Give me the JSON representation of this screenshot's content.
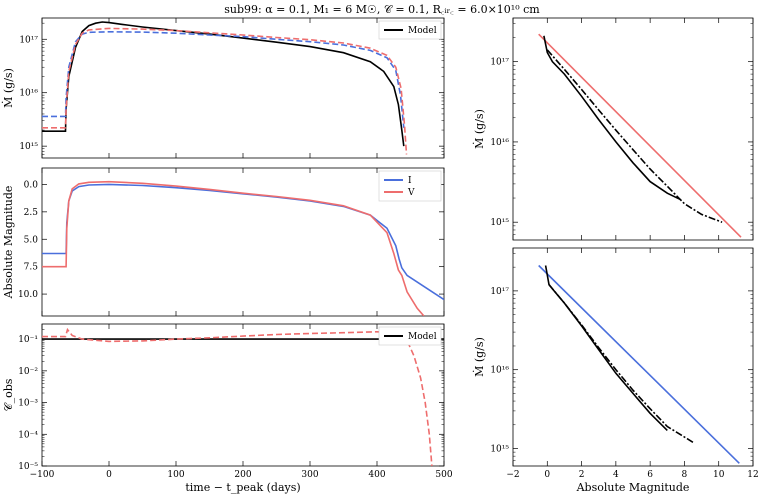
{
  "title": "sub99: α = 0.1, M₁ = 6 M☉, 𝒞 = 0.1, R꜀ᵢᵣ꜀ = 6.0×10¹⁰ cm",
  "colors": {
    "model": "#000000",
    "blue": "#4a6fdc",
    "red": "#ee6d6d"
  },
  "chart_data": [
    {
      "id": "mdot-time",
      "type": "line",
      "yscale": "log",
      "xlabel": "",
      "ylabel": "Ṁ (g/s)",
      "xlim": [
        -100,
        500
      ],
      "ylim": [
        600000000000000.0,
        2.5e+17
      ],
      "yticks": [
        {
          "v": 1000000000000000.0,
          "label": "10¹⁵"
        },
        {
          "v": 1e+16,
          "label": "10¹⁶"
        },
        {
          "v": 1e+17,
          "label": "10¹⁷"
        }
      ],
      "legend": [
        {
          "label": "Model",
          "color": "#000000",
          "dash": "solid"
        }
      ],
      "series": [
        {
          "name": "Model",
          "color": "#000000",
          "dash": "solid",
          "points": [
            [
              -100,
              1900000000000000.0
            ],
            [
              -65,
              1900000000000000.0
            ],
            [
              -64,
              5000000000000000.0
            ],
            [
              -60,
              2e+16
            ],
            [
              -50,
              7e+16
            ],
            [
              -40,
              1.4e+17
            ],
            [
              -30,
              1.8e+17
            ],
            [
              -20,
              2e+17
            ],
            [
              -10,
              2.1e+17
            ],
            [
              0,
              2.05e+17
            ],
            [
              20,
              1.9e+17
            ],
            [
              50,
              1.7e+17
            ],
            [
              100,
              1.45e+17
            ],
            [
              150,
              1.25e+17
            ],
            [
              200,
              1.05e+17
            ],
            [
              250,
              8.8e+16
            ],
            [
              300,
              7.3e+16
            ],
            [
              350,
              5.6e+16
            ],
            [
              390,
              3.8e+16
            ],
            [
              410,
              2.5e+16
            ],
            [
              425,
              1.3e+16
            ],
            [
              432,
              6000000000000000.0
            ],
            [
              437,
              2000000000000000.0
            ],
            [
              440,
              1000000000000000.0
            ]
          ]
        },
        {
          "name": "blue-dashed",
          "color": "#4a6fdc",
          "dash": "6,3",
          "points": [
            [
              -100,
              3600000000000000.0
            ],
            [
              -65,
              3600000000000000.0
            ],
            [
              -64,
              8000000000000000.0
            ],
            [
              -60,
              3e+16
            ],
            [
              -50,
              9e+16
            ],
            [
              -40,
              1.25e+17
            ],
            [
              -30,
              1.35e+17
            ],
            [
              0,
              1.38e+17
            ],
            [
              50,
              1.36e+17
            ],
            [
              100,
              1.3e+17
            ],
            [
              150,
              1.2e+17
            ],
            [
              200,
              1.12e+17
            ],
            [
              250,
              1e+17
            ],
            [
              300,
              9e+16
            ],
            [
              350,
              7.8e+16
            ],
            [
              390,
              6.2e+16
            ],
            [
              415,
              4.5e+16
            ],
            [
              428,
              2.6e+16
            ],
            [
              435,
              9000000000000000.0
            ],
            [
              440,
              2200000000000000.0
            ]
          ]
        },
        {
          "name": "red-dashed",
          "color": "#ee6d6d",
          "dash": "6,3",
          "points": [
            [
              -100,
              2200000000000000.0
            ],
            [
              -65,
              2200000000000000.0
            ],
            [
              -64,
              5000000000000000.0
            ],
            [
              -60,
              2.5e+16
            ],
            [
              -50,
              8e+16
            ],
            [
              -40,
              1.3e+17
            ],
            [
              -30,
              1.5e+17
            ],
            [
              0,
              1.6e+17
            ],
            [
              50,
              1.55e+17
            ],
            [
              100,
              1.45e+17
            ],
            [
              150,
              1.32e+17
            ],
            [
              200,
              1.2e+17
            ],
            [
              250,
              1.08e+17
            ],
            [
              300,
              9.8e+16
            ],
            [
              350,
              8.5e+16
            ],
            [
              390,
              6.8e+16
            ],
            [
              415,
              5e+16
            ],
            [
              428,
              3e+16
            ],
            [
              436,
              1.2e+16
            ],
            [
              441,
              2500000000000000.0
            ],
            [
              444,
              700000000000000.0
            ]
          ]
        }
      ]
    },
    {
      "id": "mag-time",
      "type": "line",
      "yscale": "linear",
      "yinvert": true,
      "xlabel": "",
      "ylabel": "Absolute Magnitude",
      "xlim": [
        -100,
        500
      ],
      "ylim": [
        -1.5,
        12
      ],
      "yticks": [
        {
          "v": 0,
          "label": "0.0"
        },
        {
          "v": 2.5,
          "label": "2.5"
        },
        {
          "v": 5,
          "label": "5.0"
        },
        {
          "v": 7.5,
          "label": "7.5"
        },
        {
          "v": 10,
          "label": "10.0"
        }
      ],
      "legend": [
        {
          "label": "I",
          "color": "#4a6fdc",
          "dash": "solid"
        },
        {
          "label": "V",
          "color": "#ee6d6d",
          "dash": "solid"
        }
      ],
      "series": [
        {
          "name": "I",
          "color": "#4a6fdc",
          "dash": "solid",
          "points": [
            [
              -100,
              6.3
            ],
            [
              -64,
              6.3
            ],
            [
              -63,
              3.5
            ],
            [
              -60,
              1.5
            ],
            [
              -55,
              0.6
            ],
            [
              -45,
              0.2
            ],
            [
              -30,
              0.05
            ],
            [
              0,
              0.0
            ],
            [
              50,
              0.1
            ],
            [
              100,
              0.3
            ],
            [
              150,
              0.55
            ],
            [
              200,
              0.85
            ],
            [
              250,
              1.15
            ],
            [
              300,
              1.5
            ],
            [
              350,
              2.0
            ],
            [
              390,
              2.8
            ],
            [
              415,
              4.0
            ],
            [
              428,
              5.6
            ],
            [
              433,
              6.8
            ],
            [
              437,
              7.6
            ],
            [
              445,
              8.3
            ],
            [
              470,
              9.3
            ],
            [
              500,
              10.5
            ]
          ]
        },
        {
          "name": "V",
          "color": "#ee6d6d",
          "dash": "solid",
          "points": [
            [
              -100,
              7.5
            ],
            [
              -64,
              7.5
            ],
            [
              -63,
              4.0
            ],
            [
              -60,
              1.5
            ],
            [
              -55,
              0.4
            ],
            [
              -45,
              -0.05
            ],
            [
              -30,
              -0.2
            ],
            [
              0,
              -0.25
            ],
            [
              50,
              -0.1
            ],
            [
              100,
              0.15
            ],
            [
              150,
              0.45
            ],
            [
              200,
              0.8
            ],
            [
              250,
              1.1
            ],
            [
              300,
              1.45
            ],
            [
              350,
              1.95
            ],
            [
              390,
              2.8
            ],
            [
              415,
              4.4
            ],
            [
              425,
              6.3
            ],
            [
              432,
              7.8
            ],
            [
              437,
              8.3
            ],
            [
              445,
              9.8
            ],
            [
              460,
              11.3
            ],
            [
              470,
              12
            ]
          ]
        }
      ]
    },
    {
      "id": "cobs-time",
      "type": "line",
      "yscale": "log",
      "xlabel": "time − t_peak (days)",
      "ylabel": "𝒞_obs",
      "xlim": [
        -100,
        500
      ],
      "ylim": [
        1e-05,
        0.3
      ],
      "xticks": [
        -100,
        0,
        100,
        200,
        300,
        400,
        500
      ],
      "yticks": [
        {
          "v": 0.1,
          "label": "10⁻¹"
        },
        {
          "v": 0.01,
          "label": "10⁻²"
        },
        {
          "v": 0.001,
          "label": "10⁻³"
        },
        {
          "v": 0.0001,
          "label": "10⁻⁴"
        },
        {
          "v": 1e-05,
          "label": "10⁻⁵"
        }
      ],
      "legend": [
        {
          "label": "Model",
          "color": "#000000",
          "dash": "solid"
        }
      ],
      "series": [
        {
          "name": "Model",
          "color": "#000000",
          "dash": "solid",
          "points": [
            [
              -100,
              0.1
            ],
            [
              500,
              0.1
            ]
          ]
        },
        {
          "name": "red-dashed",
          "color": "#ee6d6d",
          "dash": "6,3",
          "points": [
            [
              -100,
              0.12
            ],
            [
              -65,
              0.12
            ],
            [
              -62,
              0.2
            ],
            [
              -55,
              0.13
            ],
            [
              -40,
              0.1
            ],
            [
              0,
              0.085
            ],
            [
              50,
              0.088
            ],
            [
              100,
              0.1
            ],
            [
              150,
              0.11
            ],
            [
              200,
              0.125
            ],
            [
              250,
              0.14
            ],
            [
              300,
              0.15
            ],
            [
              350,
              0.16
            ],
            [
              400,
              0.17
            ],
            [
              430,
              0.16
            ],
            [
              445,
              0.09
            ],
            [
              455,
              0.03
            ],
            [
              465,
              0.006
            ],
            [
              472,
              0.001
            ],
            [
              478,
              0.0001
            ],
            [
              482,
              1e-05
            ]
          ]
        }
      ]
    },
    {
      "id": "mdot-mag-V",
      "type": "line",
      "yscale": "log",
      "xlabel": "",
      "ylabel": "Ṁ (g/s)",
      "xlim": [
        -2,
        12
      ],
      "ylim": [
        600000000000000.0,
        3.5e+17
      ],
      "yticks": [
        {
          "v": 1000000000000000.0,
          "label": "10¹⁵"
        },
        {
          "v": 1e+16,
          "label": "10¹⁶"
        },
        {
          "v": 1e+17,
          "label": "10¹⁷"
        }
      ],
      "series": [
        {
          "name": "fit",
          "color": "#ee6d6d",
          "dash": "solid",
          "points": [
            [
              -0.5,
              2.2e+17
            ],
            [
              11.3,
              650000000000000.0
            ]
          ]
        },
        {
          "name": "model",
          "color": "#000000",
          "dash": "solid",
          "points": [
            [
              -0.2,
              2.1e+17
            ],
            [
              0,
              1.3e+17
            ],
            [
              0.3,
              1e+17
            ],
            [
              1,
              7e+16
            ],
            [
              2,
              3.7e+16
            ],
            [
              3,
              1.9e+16
            ],
            [
              4,
              1e+16
            ],
            [
              5,
              5500000000000000.0
            ],
            [
              6,
              3200000000000000.0
            ],
            [
              7,
              2300000000000000.0
            ],
            [
              7.8,
              1900000000000000.0
            ]
          ]
        },
        {
          "name": "model-alt",
          "color": "#000000",
          "dash": "7,2,2,2",
          "points": [
            [
              0,
              1.4e+17
            ],
            [
              1,
              8e+16
            ],
            [
              2,
              4.5e+16
            ],
            [
              3,
              2.5e+16
            ],
            [
              4,
              1.4e+16
            ],
            [
              5,
              8000000000000000.0
            ],
            [
              6,
              4600000000000000.0
            ],
            [
              7,
              2800000000000000.0
            ],
            [
              8,
              1700000000000000.0
            ],
            [
              9,
              1250000000000000.0
            ],
            [
              10.2,
              1000000000000000.0
            ]
          ]
        }
      ]
    },
    {
      "id": "mdot-mag-I",
      "type": "line",
      "yscale": "log",
      "xlabel": "Absolute Magnitude",
      "ylabel": "Ṁ (g/s)",
      "xlim": [
        -2,
        12
      ],
      "ylim": [
        600000000000000.0,
        3.5e+17
      ],
      "xticks": [
        -2,
        0,
        2,
        4,
        6,
        8,
        10,
        12
      ],
      "yticks": [
        {
          "v": 1000000000000000.0,
          "label": "10¹⁵"
        },
        {
          "v": 1e+16,
          "label": "10¹⁶"
        },
        {
          "v": 1e+17,
          "label": "10¹⁷"
        }
      ],
      "series": [
        {
          "name": "fit",
          "color": "#4a6fdc",
          "dash": "solid",
          "points": [
            [
              -0.5,
              2.1e+17
            ],
            [
              11.2,
              650000000000000.0
            ]
          ]
        },
        {
          "name": "model",
          "color": "#000000",
          "dash": "solid",
          "points": [
            [
              -0.1,
              2.1e+17
            ],
            [
              0.1,
              1.2e+17
            ],
            [
              0.4,
              1e+17
            ],
            [
              1,
              7e+16
            ],
            [
              2,
              3.6e+16
            ],
            [
              3,
              1.8e+16
            ],
            [
              4,
              9000000000000000.0
            ],
            [
              5,
              5000000000000000.0
            ],
            [
              6,
              2800000000000000.0
            ],
            [
              7,
              1700000000000000.0
            ]
          ]
        },
        {
          "name": "model-alt",
          "color": "#000000",
          "dash": "7,2,2,2",
          "points": [
            [
              0.1,
              1.2e+17
            ],
            [
              1,
              7e+16
            ],
            [
              2,
              3.7e+16
            ],
            [
              3,
              1.9e+16
            ],
            [
              4,
              1e+16
            ],
            [
              5,
              5500000000000000.0
            ],
            [
              6,
              3200000000000000.0
            ],
            [
              7,
              1900000000000000.0
            ],
            [
              8.5,
              1200000000000000.0
            ]
          ]
        }
      ]
    }
  ]
}
